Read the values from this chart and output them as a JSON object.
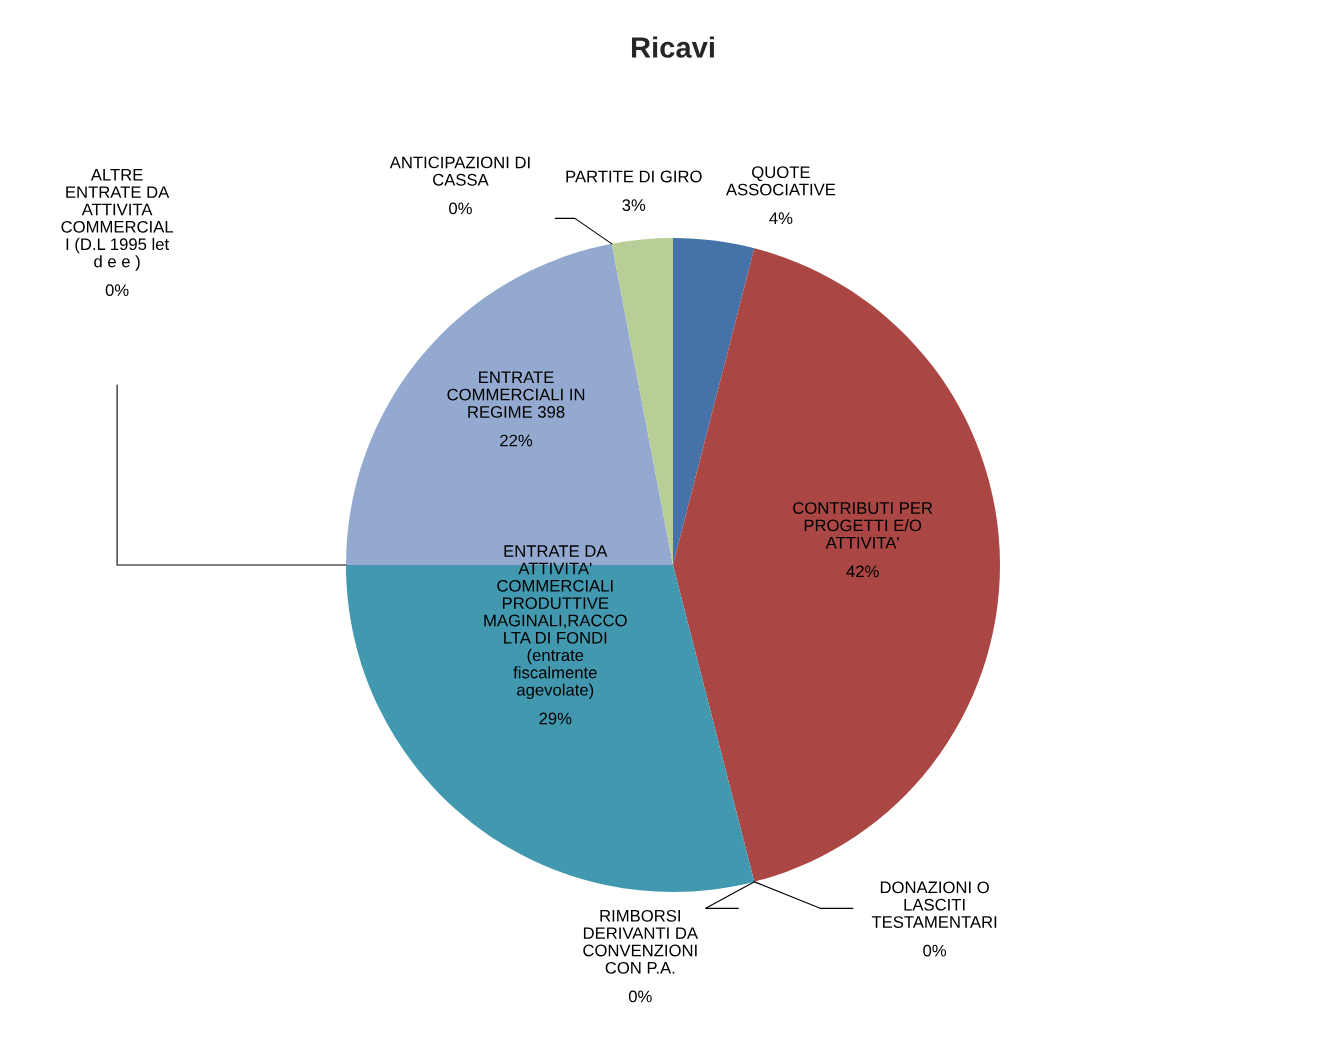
{
  "chart_data": {
    "type": "pie",
    "title": "Ricavi",
    "categories": [
      "QUOTE\nASSOCIATIVE",
      "CONTRIBUTI PER\nPROGETTI E/O\nATTIVITA'",
      "DONAZIONI O\nLASCITI\nTESTAMENTARI",
      "RIMBORSI\nDERIVANTI DA\nCONVENZIONI\nCON P.A.",
      "ENTRATE DA\nATTIVITA'\nCOMMERCIALI\nPRODUTTIVE\nMAGINALI,RACCO\nLTA DI FONDI\n(entrate\nfiscalmente\nagevolate)",
      "ALTRE\nENTRATE DA\nATTIVITA\nCOMMERCIAL\nI (D.L 1995 let\nd e e )",
      "ENTRATE\nCOMMERCIALI IN\nREGIME 398",
      "ANTICIPAZIONI DI\nCASSA",
      "PARTITE DI GIRO"
    ],
    "values": [
      4,
      42,
      0,
      0,
      29,
      0,
      22,
      0,
      3
    ],
    "value_labels": [
      "4%",
      "42%",
      "0%",
      "0%",
      "29%",
      "0%",
      "22%",
      "0%",
      "3%"
    ],
    "data_labels": true,
    "colors": [
      "#4572a7",
      "#aa4643",
      "#89a54e",
      "#71588f",
      "#4198af",
      "#db843d",
      "#93a9cf",
      "#d19392",
      "#b9cd96"
    ]
  }
}
